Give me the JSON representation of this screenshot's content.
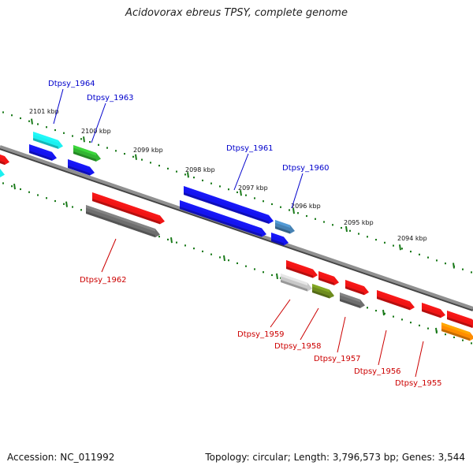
{
  "title": "Acidovorax ebreus TPSY, complete genome",
  "accession_label": "Accession: NC_011992",
  "topology_label": "Topology: circular; Length: 3,796,573 bp; Genes: 3,544",
  "kbp_labels": [
    "2101 kbp",
    "2100 kbp",
    "2099 kbp",
    "2098 kbp",
    "2097 kbp",
    "2096 kbp",
    "2095 kbp",
    "2094 kbp"
  ],
  "gene_labels": {
    "forward": [
      "Dtpsy_1964",
      "Dtpsy_1963",
      "Dtpsy_1961",
      "Dtpsy_1960"
    ],
    "reverse": [
      "Dtpsy_1962",
      "Dtpsy_1959",
      "Dtpsy_1958",
      "Dtpsy_1957",
      "Dtpsy_1956",
      "Dtpsy_1955"
    ]
  },
  "colors": {
    "forward_label": "#0000cc",
    "reverse_label": "#cc0000",
    "backbone": "#808080",
    "tick": "#1a7a1a",
    "blue": "#1414f0",
    "cyan": "#1cf0f0",
    "green": "#32b432",
    "steel": "#4682b4",
    "red": "#f01414",
    "gray": "#6e6e6e",
    "lightgray": "#c8c8c8",
    "olive": "#6e8c1e",
    "orange": "#ff8c00"
  }
}
